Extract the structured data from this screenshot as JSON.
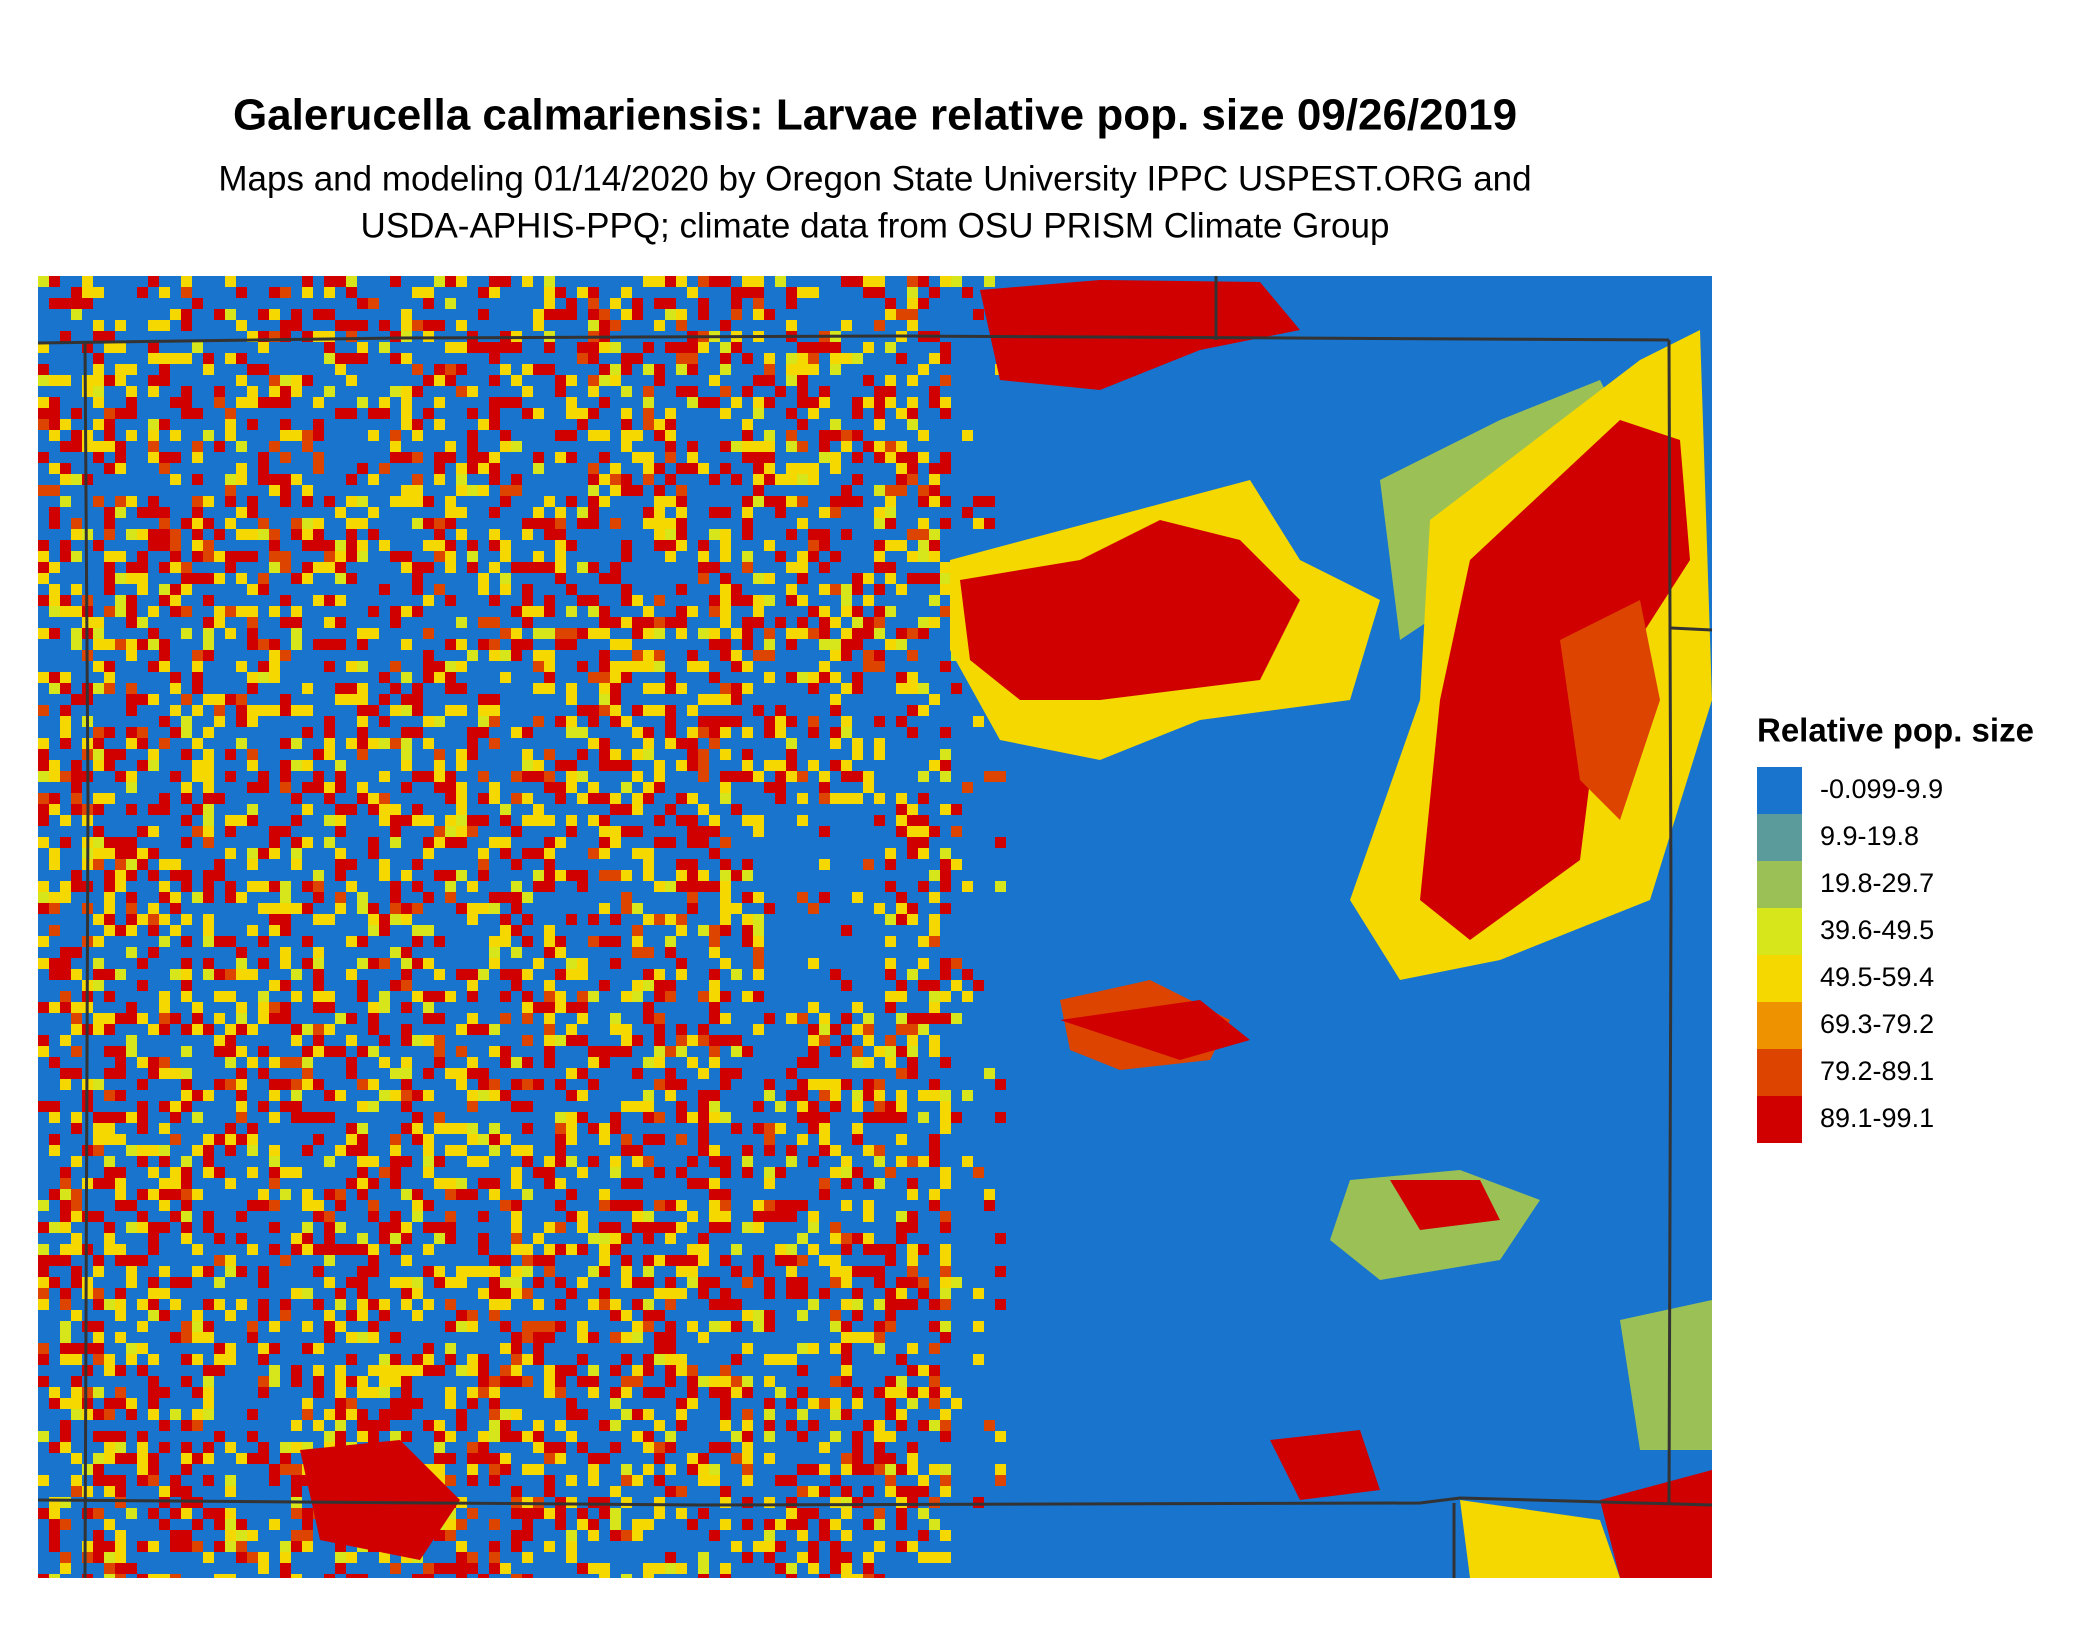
{
  "title": "Galerucella calmariensis: Larvae relative pop. size 09/26/2019",
  "subtitle": [
    "Maps and modeling 01/14/2020 by Oregon State University IPPC USPEST.ORG and",
    "USDA-APHIS-PPQ; climate data from OSU PRISM Climate Group"
  ],
  "legend": {
    "title": "Relative pop. size",
    "items": [
      {
        "label": "-0.099-9.9",
        "color": "#1874cd"
      },
      {
        "label": "9.9-19.8",
        "color": "#5b9b9b"
      },
      {
        "label": "19.8-29.7",
        "color": "#9bc156"
      },
      {
        "label": "39.6-49.5",
        "color": "#d7e61a"
      },
      {
        "label": "49.5-59.4",
        "color": "#f5d800"
      },
      {
        "label": "69.3-79.2",
        "color": "#ee9200"
      },
      {
        "label": "79.2-89.1",
        "color": "#dd4400"
      },
      {
        "label": "89.1-99.1",
        "color": "#d00000"
      }
    ]
  }
}
